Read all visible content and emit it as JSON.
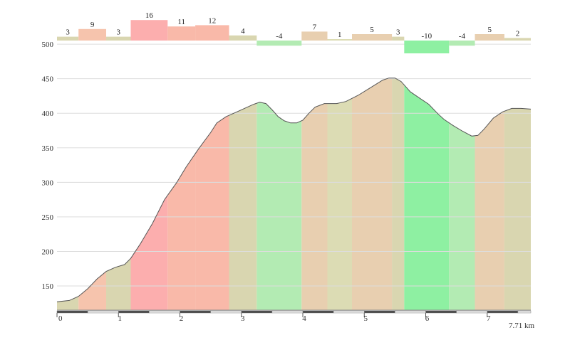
{
  "chart_data": {
    "type": "area",
    "x_unit": "km",
    "total_distance": 7.71,
    "total_distance_label": "7.71 km",
    "ylim": [
      115,
      530
    ],
    "yticks": [
      150,
      200,
      250,
      300,
      350,
      400,
      450,
      500
    ],
    "xticks": [
      0,
      1,
      2,
      3,
      4,
      5,
      6,
      7
    ],
    "grid": true,
    "profile": [
      [
        0.0,
        127
      ],
      [
        0.2,
        129
      ],
      [
        0.35,
        135
      ],
      [
        0.5,
        146
      ],
      [
        0.65,
        160
      ],
      [
        0.8,
        171
      ],
      [
        0.95,
        177
      ],
      [
        1.1,
        181
      ],
      [
        1.2,
        190
      ],
      [
        1.35,
        210
      ],
      [
        1.55,
        240
      ],
      [
        1.75,
        275
      ],
      [
        1.95,
        300
      ],
      [
        2.1,
        322
      ],
      [
        2.3,
        348
      ],
      [
        2.5,
        372
      ],
      [
        2.6,
        386
      ],
      [
        2.75,
        395
      ],
      [
        2.9,
        401
      ],
      [
        3.05,
        407
      ],
      [
        3.2,
        413
      ],
      [
        3.3,
        416
      ],
      [
        3.4,
        414
      ],
      [
        3.5,
        405
      ],
      [
        3.6,
        395
      ],
      [
        3.7,
        389
      ],
      [
        3.8,
        386
      ],
      [
        3.9,
        386
      ],
      [
        4.0,
        390
      ],
      [
        4.1,
        400
      ],
      [
        4.2,
        409
      ],
      [
        4.35,
        414
      ],
      [
        4.55,
        414
      ],
      [
        4.7,
        417
      ],
      [
        4.9,
        426
      ],
      [
        5.1,
        437
      ],
      [
        5.3,
        448
      ],
      [
        5.4,
        451
      ],
      [
        5.5,
        451
      ],
      [
        5.6,
        446
      ],
      [
        5.75,
        431
      ],
      [
        5.9,
        422
      ],
      [
        6.05,
        413
      ],
      [
        6.2,
        399
      ],
      [
        6.3,
        391
      ],
      [
        6.45,
        382
      ],
      [
        6.6,
        374
      ],
      [
        6.75,
        367
      ],
      [
        6.85,
        368
      ],
      [
        6.95,
        377
      ],
      [
        7.1,
        393
      ],
      [
        7.25,
        402
      ],
      [
        7.4,
        407
      ],
      [
        7.55,
        407
      ],
      [
        7.71,
        406
      ]
    ],
    "segments": [
      {
        "start": 0.0,
        "end": 0.35,
        "grade": 3,
        "label": "3"
      },
      {
        "start": 0.35,
        "end": 0.8,
        "grade": 9,
        "label": "9"
      },
      {
        "start": 0.8,
        "end": 1.2,
        "grade": 3,
        "label": "3"
      },
      {
        "start": 1.2,
        "end": 1.8,
        "grade": 16,
        "label": "16"
      },
      {
        "start": 1.8,
        "end": 2.25,
        "grade": 11,
        "label": "11"
      },
      {
        "start": 2.25,
        "end": 2.8,
        "grade": 12,
        "label": "12"
      },
      {
        "start": 2.8,
        "end": 3.25,
        "grade": 4,
        "label": "4"
      },
      {
        "start": 3.25,
        "end": 3.98,
        "grade": -4,
        "label": "-4"
      },
      {
        "start": 3.98,
        "end": 4.4,
        "grade": 7,
        "label": "7"
      },
      {
        "start": 4.4,
        "end": 4.8,
        "grade": 1,
        "label": "1"
      },
      {
        "start": 4.8,
        "end": 5.45,
        "grade": 5,
        "label": "5"
      },
      {
        "start": 5.45,
        "end": 5.65,
        "grade": 3,
        "label": "3"
      },
      {
        "start": 5.65,
        "end": 6.38,
        "grade": -10,
        "label": "-10"
      },
      {
        "start": 6.38,
        "end": 6.8,
        "grade": -4,
        "label": "-4"
      },
      {
        "start": 6.8,
        "end": 7.28,
        "grade": 5,
        "label": "5"
      },
      {
        "start": 7.28,
        "end": 7.71,
        "grade": 2,
        "label": "2"
      }
    ],
    "colors": {
      "grade_2_to_4": "#d9d6b0",
      "grade_5_to_8": "#e8cfb0",
      "grade_9": "#f6c4ad",
      "grade_11_to_12": "#f9b9a9",
      "grade_16": "#fcaeae",
      "grade_1": "#dcdcb4",
      "grade_minus_4": "#b3ebb3",
      "grade_minus_10": "#8ef0a2",
      "profile_line": "#555555",
      "grid": "#dddddd"
    }
  }
}
